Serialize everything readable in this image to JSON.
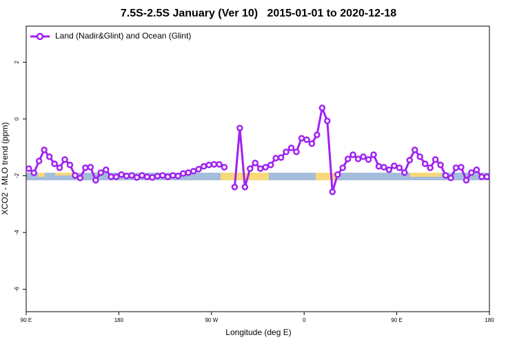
{
  "chart_data": {
    "type": "line",
    "title": "7.5S-2.5S January (Ver 10)   2015-01-01 to 2020-12-18",
    "x_label": "Longitude (deg E)",
    "y_label": "XCO2 - MLO trend (ppm)",
    "x": [
      92.5,
      97.5,
      102.5,
      107.5,
      112.5,
      117.5,
      122.5,
      127.5,
      132.5,
      137.5,
      142.5,
      147.5,
      152.5,
      157.5,
      162.5,
      167.5,
      172.5,
      177.5,
      182.5,
      187.5,
      192.5,
      197.5,
      202.5,
      207.5,
      212.5,
      217.5,
      222.5,
      227.5,
      232.5,
      237.5,
      242.5,
      247.5,
      252.5,
      257.5,
      262.5,
      267.5,
      272.5,
      277.5,
      282.5,
      287.5,
      292.5,
      297.5,
      302.5,
      307.5,
      312.5,
      317.5,
      322.5,
      327.5,
      332.5,
      337.5,
      342.5,
      347.5,
      352.5,
      357.5,
      362.5,
      367.5,
      372.5,
      377.5,
      382.5,
      387.5,
      392.5,
      397.5,
      402.5,
      407.5,
      412.5,
      417.5,
      422.5,
      427.5,
      432.5,
      437.5,
      442.5,
      447.5,
      452.5,
      457.5,
      462.5,
      467.5,
      472.5,
      477.5,
      482.5,
      487.5,
      492.5,
      497.5,
      502.5,
      507.5,
      512.5,
      517.5,
      522.5,
      527.5,
      532.5,
      537.5
    ],
    "series": [
      {
        "name": "Land (Nadir&Glint) and Ocean (Glint)",
        "color": "#a020f0",
        "values": [
          -1.75,
          -1.9,
          -1.48,
          -1.09,
          -1.33,
          -1.58,
          -1.72,
          -1.43,
          -1.62,
          -1.99,
          -2.08,
          -1.72,
          -1.7,
          -2.16,
          -1.89,
          -1.79,
          -2.04,
          -2.04,
          -1.96,
          -2.01,
          -1.99,
          -2.06,
          -1.99,
          -2.04,
          -2.06,
          -2.01,
          -1.99,
          -2.04,
          -1.99,
          -2.01,
          -1.92,
          -1.89,
          -1.84,
          -1.77,
          -1.67,
          -1.62,
          -1.6,
          -1.6,
          -1.7,
          null,
          -2.4,
          -0.32,
          -2.4,
          -1.75,
          -1.55,
          -1.75,
          -1.7,
          -1.62,
          -1.38,
          -1.36,
          -1.16,
          -1.02,
          -1.16,
          -0.68,
          -0.73,
          -0.87,
          -0.56,
          0.39,
          -0.07,
          -2.57,
          -1.96,
          -1.72,
          -1.41,
          -1.26,
          -1.41,
          -1.33,
          -1.43,
          -1.26,
          -1.67,
          -1.7,
          -1.79,
          -1.65,
          -1.72,
          -1.89,
          -1.45,
          -1.09,
          -1.33,
          -1.58,
          -1.72,
          -1.43,
          -1.62,
          -1.99,
          -2.08,
          -1.72,
          -1.7,
          -2.16,
          -1.89,
          -1.79,
          -2.04,
          -2.04
        ]
      }
    ],
    "xlim": [
      90,
      540
    ],
    "xticks": [
      {
        "value": 90,
        "label": "90 E"
      },
      180,
      {
        "value": 270,
        "label": "90 W"
      },
      {
        "value": 360,
        "label": "0"
      },
      {
        "value": 450,
        "label": "90 E"
      },
      {
        "value": 540,
        "label": "180"
      }
    ],
    "ylim": [
      3.27,
      -6.79
    ],
    "yticks": [
      2,
      0,
      -2,
      -4,
      -6
    ],
    "legend": "top-left"
  }
}
